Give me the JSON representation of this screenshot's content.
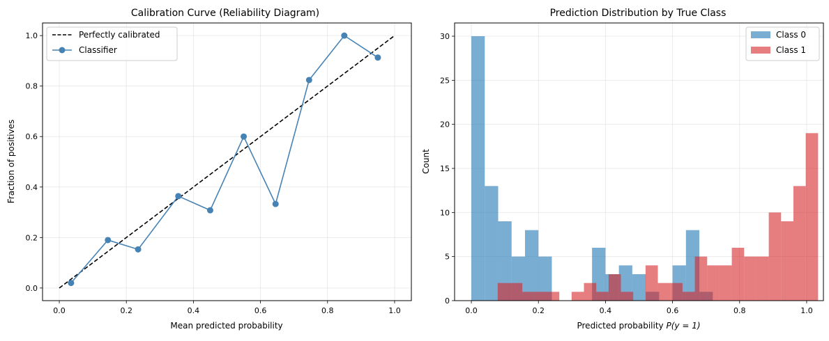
{
  "chart_data": [
    {
      "type": "line",
      "title": "Calibration Curve (Reliability Diagram)",
      "xlabel": "Mean predicted probability",
      "ylabel": "Fraction of positives",
      "xlim": [
        -0.05,
        1.05
      ],
      "ylim": [
        -0.05,
        1.05
      ],
      "xticks": [
        0.0,
        0.2,
        0.4,
        0.6,
        0.8,
        1.0
      ],
      "yticks": [
        0.0,
        0.2,
        0.4,
        0.6,
        0.8,
        1.0
      ],
      "tick_format": "0.0",
      "grid": true,
      "legend": "top-left",
      "series": [
        {
          "name": "Perfectly calibrated",
          "style": "dashed",
          "color": "#000000",
          "x": [
            0.0,
            1.0
          ],
          "y": [
            0.0,
            1.0
          ]
        },
        {
          "name": "Classifier",
          "style": "solid-marker",
          "color": "#4682b4",
          "x": [
            0.035,
            0.145,
            0.235,
            0.355,
            0.45,
            0.55,
            0.645,
            0.745,
            0.85,
            0.95
          ],
          "y": [
            0.02,
            0.19,
            0.153,
            0.364,
            0.308,
            0.6,
            0.333,
            0.824,
            1.0,
            0.913
          ]
        }
      ]
    },
    {
      "type": "bar",
      "subtype": "histogram",
      "title": "Prediction Distribution by True Class",
      "xlabel_prefix": "Predicted probability ",
      "xlabel_var": "P(y = 1)",
      "ylabel": "Count",
      "xlim": [
        -0.05,
        1.05
      ],
      "ylim": [
        0,
        31.5
      ],
      "xticks": [
        0.0,
        0.2,
        0.4,
        0.6,
        0.8,
        1.0
      ],
      "yticks": [
        0,
        5,
        10,
        15,
        20,
        25,
        30
      ],
      "grid": true,
      "legend": "top-right",
      "series": [
        {
          "name": "Class 0",
          "color": "#1f77b4",
          "alpha": 0.6,
          "bin_start": 0.0,
          "bin_width": 0.04,
          "counts": [
            30,
            13,
            9,
            5,
            8,
            5,
            0,
            0,
            0,
            6,
            3,
            4,
            3,
            1,
            0,
            4,
            8,
            1,
            0,
            0,
            0,
            0,
            0,
            0,
            0
          ]
        },
        {
          "name": "Class 1",
          "color": "#d62728",
          "alpha": 0.6,
          "bin_start": 0.0785,
          "bin_width": 0.03675,
          "counts": [
            2,
            2,
            1,
            1,
            1,
            0,
            1,
            2,
            1,
            3,
            1,
            0,
            4,
            2,
            2,
            1,
            5,
            4,
            4,
            6,
            5,
            5,
            10,
            9,
            13,
            19
          ]
        }
      ]
    }
  ]
}
